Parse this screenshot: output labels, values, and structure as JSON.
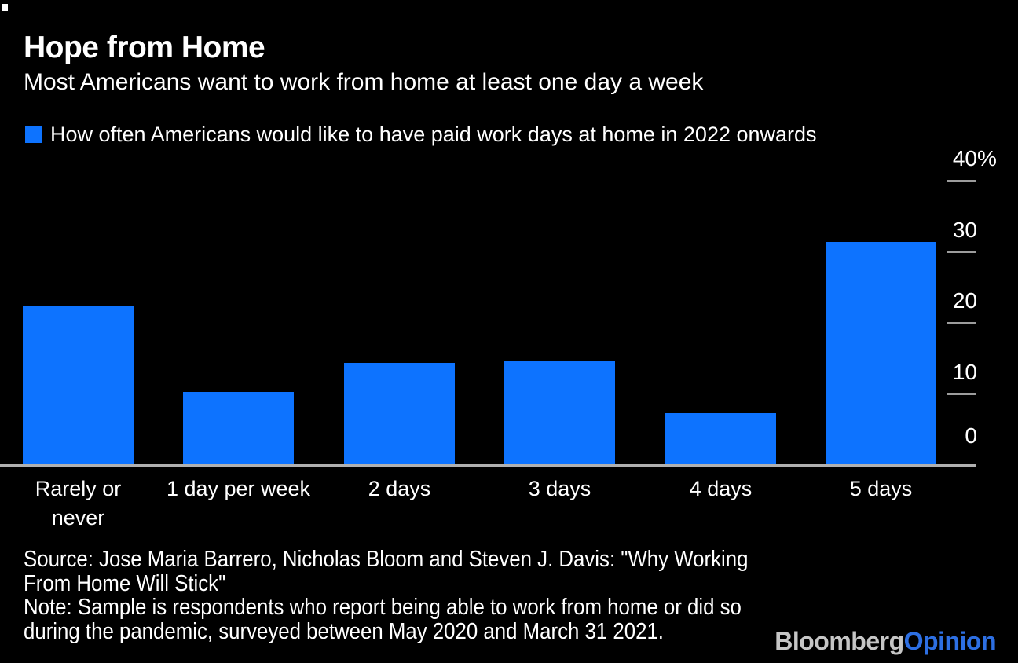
{
  "header": {
    "title": "Hope from Home",
    "subtitle": "Most Americans want to work from home at least one day a week",
    "legend_label": "How often Americans would like to have paid work days at home in 2022 onwards"
  },
  "chart_data": {
    "type": "bar",
    "categories": [
      "Rarely or\nnever",
      "1 day per week",
      "2 days",
      "3 days",
      "4 days",
      "5 days"
    ],
    "values": [
      22.2,
      10.2,
      14.2,
      14.6,
      7.2,
      31.2
    ],
    "title": "Hope from Home",
    "subtitle": "Most Americans want to work from home at least one day a week",
    "series_label": "How often Americans would like to have paid work days at home in 2022 onwards",
    "xlabel": "",
    "ylabel": "",
    "unit": "%",
    "ylim": [
      0,
      40
    ],
    "yticks": [
      0,
      10,
      20,
      30,
      40
    ],
    "ytick_top_suffix": "%",
    "value_axis_side": "right",
    "grid": "off",
    "legend_position": "top-left",
    "bar_color": "#0d73ff",
    "background_color": "#000000"
  },
  "footer": {
    "source_line1": "Source: Jose Maria Barrero, Nicholas Bloom and Steven J. Davis: \"Why Working",
    "source_line2": "From Home Will Stick\"",
    "note_line1": "Note: Sample is respondents who report being able to work from home or did so",
    "note_line2": "during the pandemic, surveyed between May 2020 and March 31 2021.",
    "brand_part1": "Bloomberg",
    "brand_part2": "Opinion"
  },
  "colors": {
    "bar_blue": "#0d73ff",
    "brand_gray": "#c6c6c6",
    "brand_blue": "#2d6fe3",
    "axis_line_gray": "#b0b0b0",
    "tick_gray": "#9c9c9c",
    "text_white": "#ffffff"
  }
}
